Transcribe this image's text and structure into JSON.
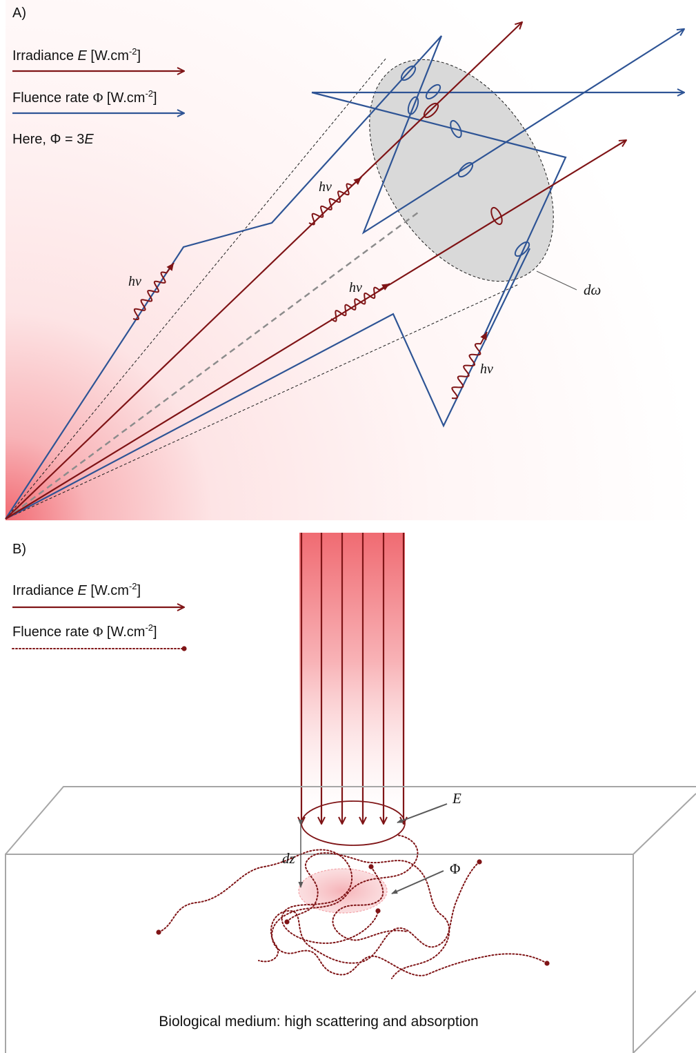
{
  "colors": {
    "irradiance": "#7f1416",
    "fluence": "#2e5495",
    "glow": "#f36b72",
    "cone_fill": "#d9d9d9",
    "box_edge": "#a6a6a6",
    "pointer": "#595959"
  },
  "panel_a": {
    "label": "A)",
    "legend": {
      "irradiance": {
        "name": "Irradiance ",
        "symbol": "E",
        "unit_pre": " [W.cm",
        "exponent": "-2",
        "unit_post": "]"
      },
      "fluence": {
        "name": "Fluence rate ",
        "symbol": "Φ",
        "unit_pre": " [W.cm",
        "exponent": "-2",
        "unit_post": "]"
      },
      "relation": {
        "pre": "Here, Φ = 3",
        "symbol": "E"
      }
    },
    "photon_label": "hv",
    "solid_angle_label": "dω"
  },
  "panel_b": {
    "label": "B)",
    "legend": {
      "irradiance": {
        "name": "Irradiance ",
        "symbol": "E",
        "unit_pre": " [W.cm",
        "exponent": "-2",
        "unit_post": "]"
      },
      "fluence": {
        "name": "Fluence rate ",
        "symbol": "Φ",
        "unit_pre": " [W.cm",
        "exponent": "-2",
        "unit_post": "]"
      }
    },
    "e_label": "E",
    "phi_label": "Φ",
    "dz_label": "dz",
    "medium_caption": "Biological medium: high scattering and absorption"
  }
}
